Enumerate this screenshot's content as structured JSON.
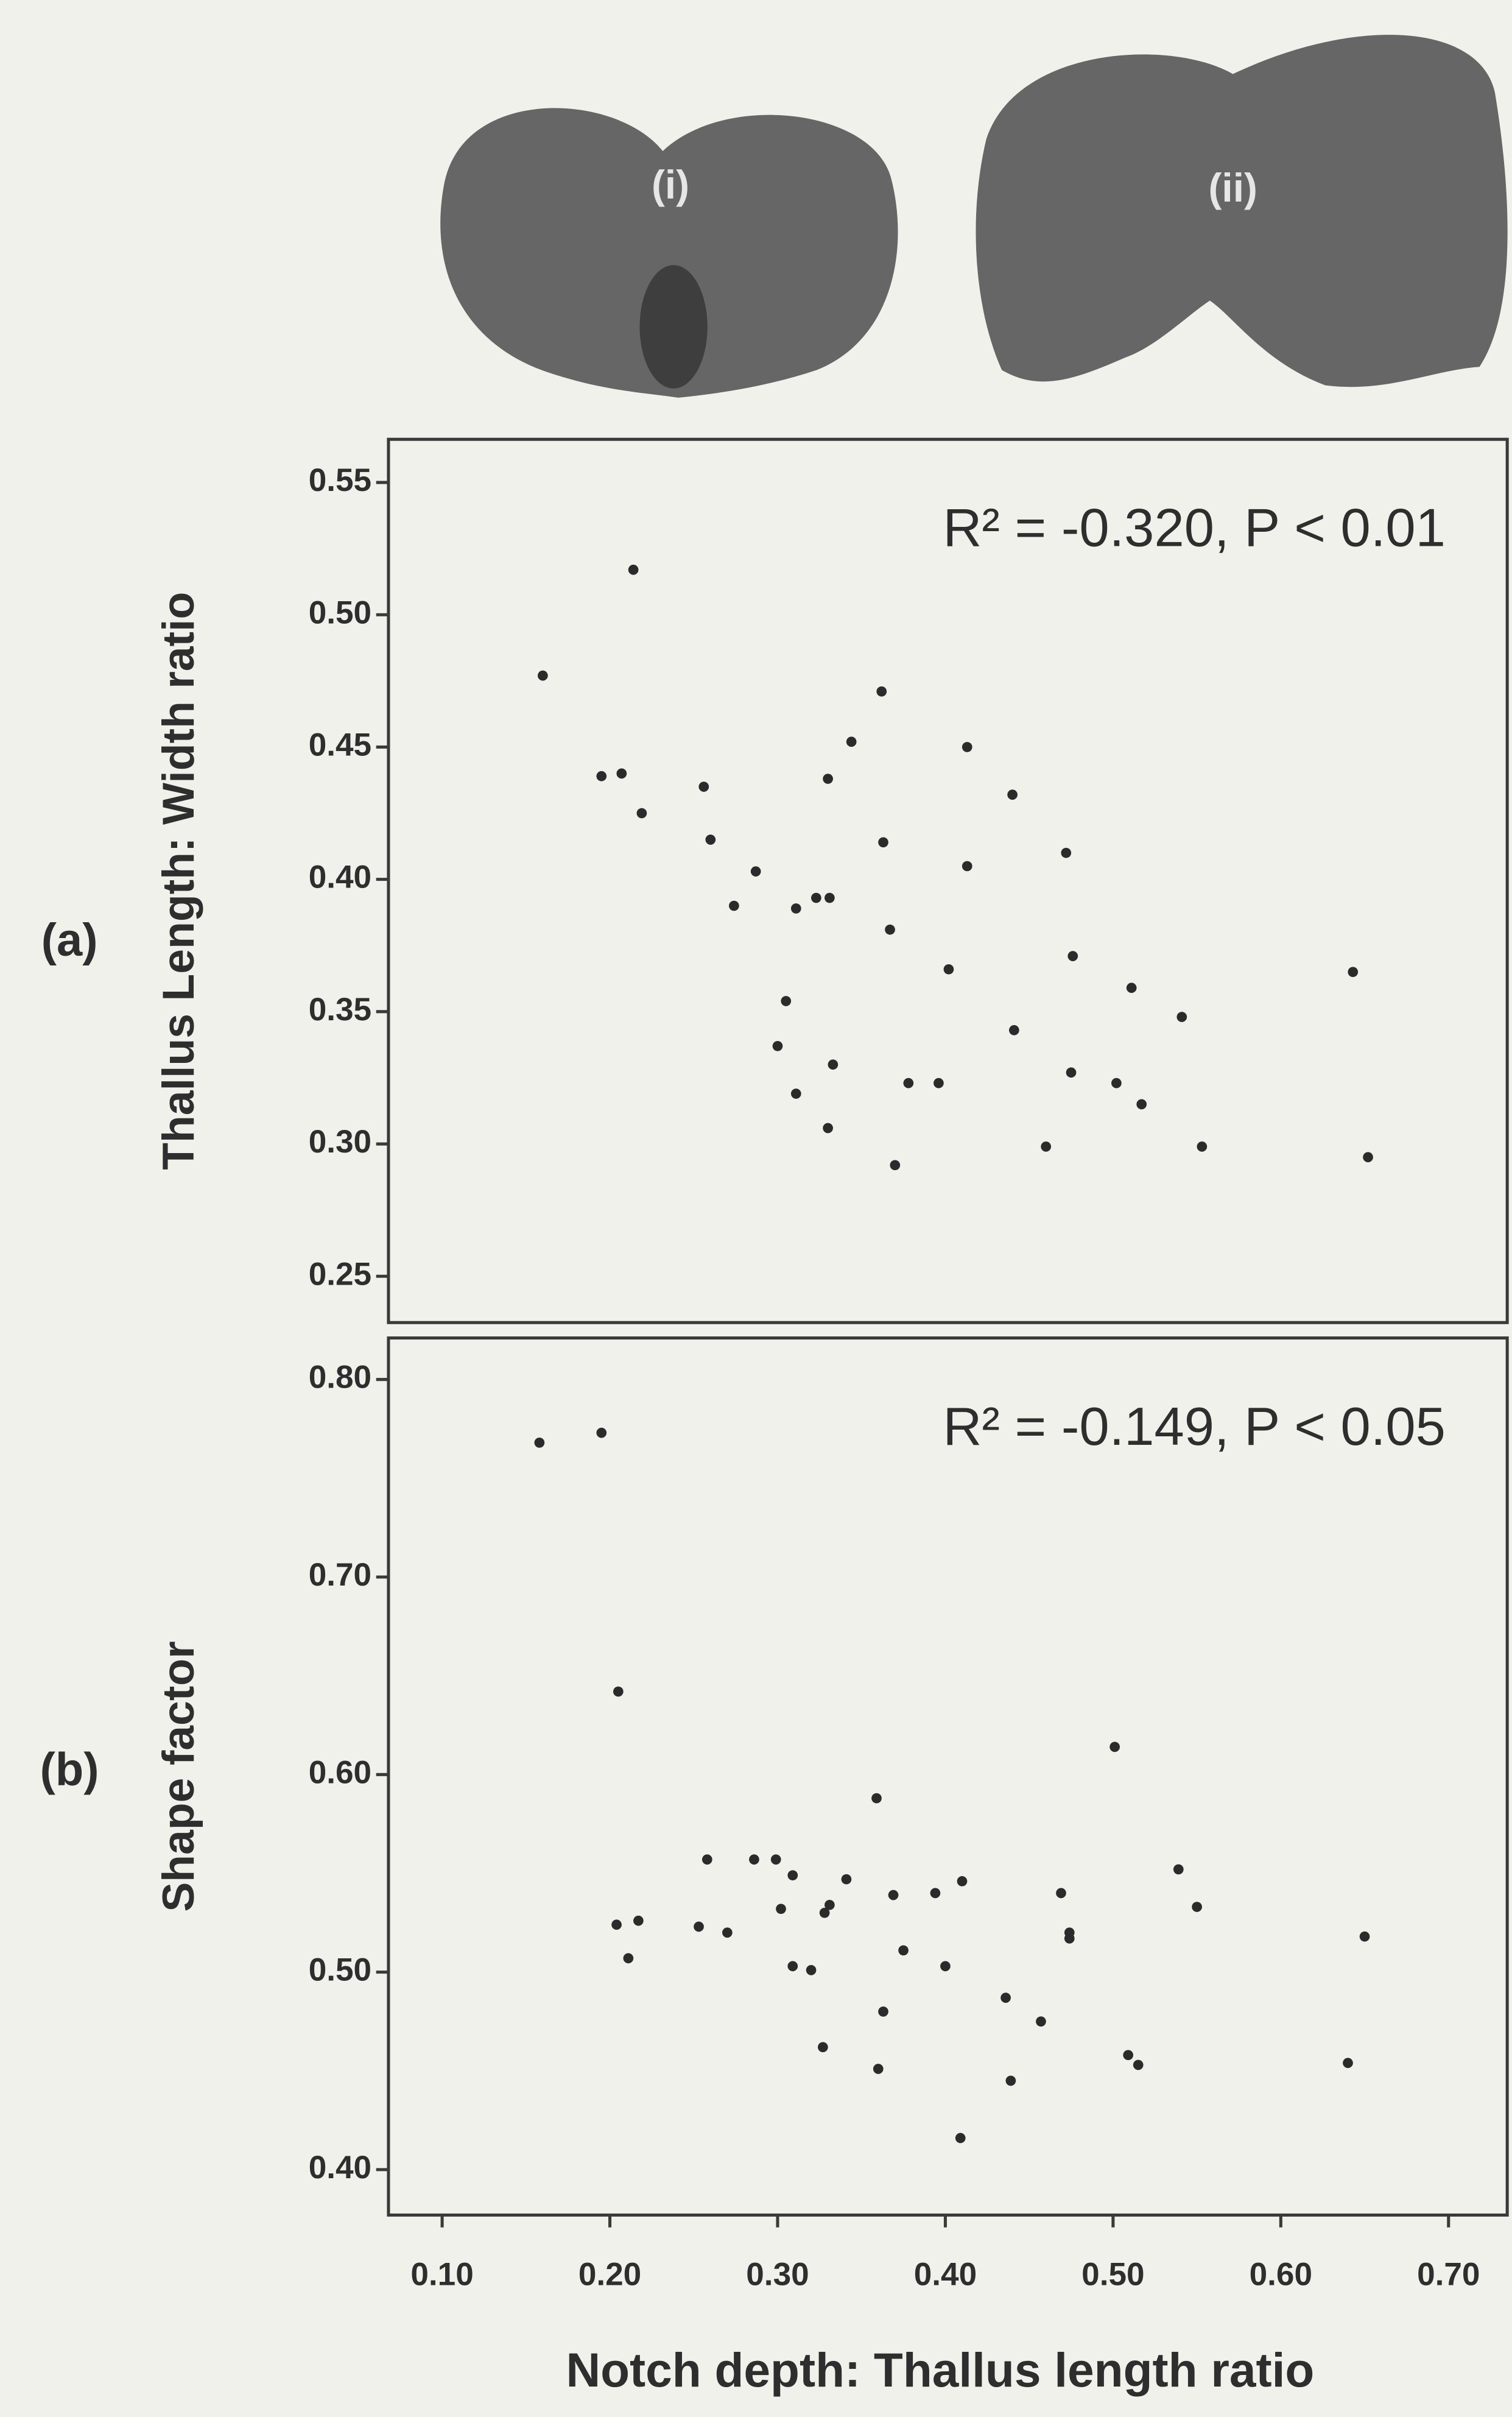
{
  "thallus_labels": [
    "(i)",
    "(ii)"
  ],
  "chart_data": [
    {
      "type": "scatter",
      "panel_label": "(a)",
      "ylabel": "Thallus Length: Width ratio",
      "annotation": "R² = -0.320, P < 0.01",
      "color": "#2b2b2b",
      "x": [
        0.16,
        0.214,
        0.195,
        0.207,
        0.219,
        0.256,
        0.26,
        0.287,
        0.274,
        0.311,
        0.323,
        0.331,
        0.33,
        0.344,
        0.362,
        0.363,
        0.367,
        0.413,
        0.413,
        0.44,
        0.402,
        0.472,
        0.476,
        0.511,
        0.541,
        0.643,
        0.305,
        0.3,
        0.311,
        0.333,
        0.33,
        0.378,
        0.396,
        0.37,
        0.441,
        0.475,
        0.46,
        0.502,
        0.517,
        0.553,
        0.652
      ],
      "values": [
        0.477,
        0.517,
        0.439,
        0.44,
        0.425,
        0.435,
        0.415,
        0.403,
        0.39,
        0.389,
        0.393,
        0.393,
        0.438,
        0.452,
        0.471,
        0.414,
        0.381,
        0.45,
        0.405,
        0.432,
        0.366,
        0.41,
        0.371,
        0.359,
        0.348,
        0.365,
        0.354,
        0.337,
        0.319,
        0.33,
        0.306,
        0.323,
        0.323,
        0.292,
        0.343,
        0.327,
        0.299,
        0.323,
        0.315,
        0.299,
        0.295
      ],
      "xlim": [
        0.068,
        0.735
      ],
      "ylim": [
        0.2325,
        0.5663
      ],
      "yticks": [
        {
          "value": 0.55,
          "label": "0.55"
        },
        {
          "value": 0.5,
          "label": "0.50"
        },
        {
          "value": 0.45,
          "label": "0.45"
        },
        {
          "value": 0.4,
          "label": "0.40"
        },
        {
          "value": 0.35,
          "label": "0.35"
        },
        {
          "value": 0.3,
          "label": "0.30"
        },
        {
          "value": 0.25,
          "label": "0.25"
        }
      ]
    },
    {
      "type": "scatter",
      "panel_label": "(b)",
      "ylabel": "Shape factor",
      "annotation": "R² = -0.149, P < 0.05",
      "color": "#2b2b2b",
      "xlabel": "Notch depth: Thallus length ratio",
      "x": [
        0.158,
        0.195,
        0.205,
        0.204,
        0.217,
        0.211,
        0.253,
        0.258,
        0.27,
        0.286,
        0.299,
        0.309,
        0.302,
        0.309,
        0.32,
        0.328,
        0.331,
        0.341,
        0.327,
        0.359,
        0.369,
        0.375,
        0.363,
        0.36,
        0.394,
        0.41,
        0.4,
        0.409,
        0.436,
        0.457,
        0.439,
        0.469,
        0.474,
        0.474,
        0.501,
        0.509,
        0.515,
        0.539,
        0.55,
        0.64,
        0.65
      ],
      "values": [
        0.768,
        0.773,
        0.642,
        0.524,
        0.526,
        0.507,
        0.523,
        0.557,
        0.52,
        0.557,
        0.557,
        0.549,
        0.532,
        0.503,
        0.501,
        0.53,
        0.534,
        0.547,
        0.462,
        0.588,
        0.539,
        0.511,
        0.48,
        0.451,
        0.54,
        0.546,
        0.503,
        0.416,
        0.487,
        0.475,
        0.445,
        0.54,
        0.52,
        0.517,
        0.614,
        0.458,
        0.453,
        0.552,
        0.533,
        0.454,
        0.518
      ],
      "xlim": [
        0.068,
        0.735
      ],
      "ylim": [
        0.377,
        0.821
      ],
      "xticks": [
        {
          "value": 0.1,
          "label": "0.10"
        },
        {
          "value": 0.2,
          "label": "0.20"
        },
        {
          "value": 0.3,
          "label": "0.30"
        },
        {
          "value": 0.4,
          "label": "0.40"
        },
        {
          "value": 0.5,
          "label": "0.50"
        },
        {
          "value": 0.6,
          "label": "0.60"
        },
        {
          "value": 0.7,
          "label": "0.70"
        }
      ],
      "yticks": [
        {
          "value": 0.8,
          "label": "0.80"
        },
        {
          "value": 0.7,
          "label": "0.70"
        },
        {
          "value": 0.6,
          "label": "0.60"
        },
        {
          "value": 0.5,
          "label": "0.50"
        },
        {
          "value": 0.4,
          "label": "0.40"
        }
      ]
    }
  ]
}
